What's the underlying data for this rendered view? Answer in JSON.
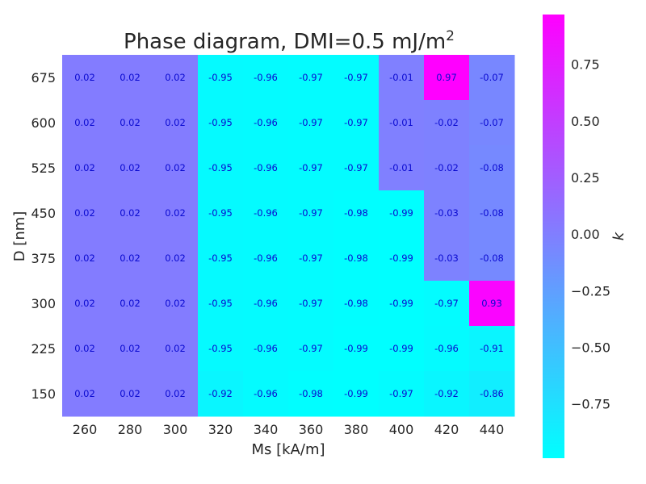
{
  "chart_data": {
    "type": "heatmap",
    "title": "Phase diagram, DMI=0.5 mJ/m",
    "title_superscript": "2",
    "xlabel": "Ms [kA/m]",
    "ylabel": "D [nm]",
    "x": [
      "260",
      "280",
      "300",
      "320",
      "340",
      "360",
      "380",
      "400",
      "420",
      "440"
    ],
    "y": [
      "675",
      "600",
      "525",
      "450",
      "375",
      "300",
      "225",
      "150"
    ],
    "values": [
      [
        0.02,
        0.02,
        0.02,
        -0.95,
        -0.96,
        -0.97,
        -0.97,
        -0.01,
        0.97,
        -0.07
      ],
      [
        0.02,
        0.02,
        0.02,
        -0.95,
        -0.96,
        -0.97,
        -0.97,
        -0.01,
        -0.02,
        -0.07
      ],
      [
        0.02,
        0.02,
        0.02,
        -0.95,
        -0.96,
        -0.97,
        -0.97,
        -0.01,
        -0.02,
        -0.08
      ],
      [
        0.02,
        0.02,
        0.02,
        -0.95,
        -0.96,
        -0.97,
        -0.98,
        -0.99,
        -0.03,
        -0.08
      ],
      [
        0.02,
        0.02,
        0.02,
        -0.95,
        -0.96,
        -0.97,
        -0.98,
        -0.99,
        -0.03,
        -0.08
      ],
      [
        0.02,
        0.02,
        0.02,
        -0.95,
        -0.96,
        -0.97,
        -0.98,
        -0.99,
        -0.97,
        0.93
      ],
      [
        0.02,
        0.02,
        0.02,
        -0.95,
        -0.96,
        -0.97,
        -0.99,
        -0.99,
        -0.96,
        -0.91
      ],
      [
        0.02,
        0.02,
        0.02,
        -0.92,
        -0.96,
        -0.98,
        -0.99,
        -0.97,
        -0.92,
        -0.86
      ]
    ],
    "labels": [
      [
        "0.02",
        "0.02",
        "0.02",
        "-0.95",
        "-0.96",
        "-0.97",
        "-0.97",
        "-0.01",
        "0.97",
        "-0.07"
      ],
      [
        "0.02",
        "0.02",
        "0.02",
        "-0.95",
        "-0.96",
        "-0.97",
        "-0.97",
        "-0.01",
        "-0.02",
        "-0.07"
      ],
      [
        "0.02",
        "0.02",
        "0.02",
        "-0.95",
        "-0.96",
        "-0.97",
        "-0.97",
        "-0.01",
        "-0.02",
        "-0.08"
      ],
      [
        "0.02",
        "0.02",
        "0.02",
        "-0.95",
        "-0.96",
        "-0.97",
        "-0.98",
        "-0.99",
        "-0.03",
        "-0.08"
      ],
      [
        "0.02",
        "0.02",
        "0.02",
        "-0.95",
        "-0.96",
        "-0.97",
        "-0.98",
        "-0.99",
        "-0.03",
        "-0.08"
      ],
      [
        "0.02",
        "0.02",
        "0.02",
        "-0.95",
        "-0.96",
        "-0.97",
        "-0.98",
        "-0.99",
        "-0.97",
        "0.93"
      ],
      [
        "0.02",
        "0.02",
        "0.02",
        "-0.95",
        "-0.96",
        "-0.97",
        "-0.99",
        "-0.99",
        "-0.96",
        "-0.91"
      ],
      [
        "0.02",
        "0.02",
        "0.02",
        "-0.92",
        "-0.96",
        "-0.98",
        "-0.99",
        "-0.97",
        "-0.92",
        "-0.86"
      ]
    ],
    "colormap": "cool",
    "colormap_start": "#00ffff",
    "colormap_end": "#ff00ff",
    "vmin": -0.99,
    "vmax": 0.97,
    "colorbar_label": "k",
    "colorbar_ticks": [
      "0.75",
      "0.50",
      "0.25",
      "0.00",
      "−0.25",
      "−0.50",
      "−0.75"
    ],
    "colorbar_tick_values": [
      0.75,
      0.5,
      0.25,
      0.0,
      -0.25,
      -0.5,
      -0.75
    ],
    "cell_label_color": "#0a0ad0",
    "grid": false
  }
}
